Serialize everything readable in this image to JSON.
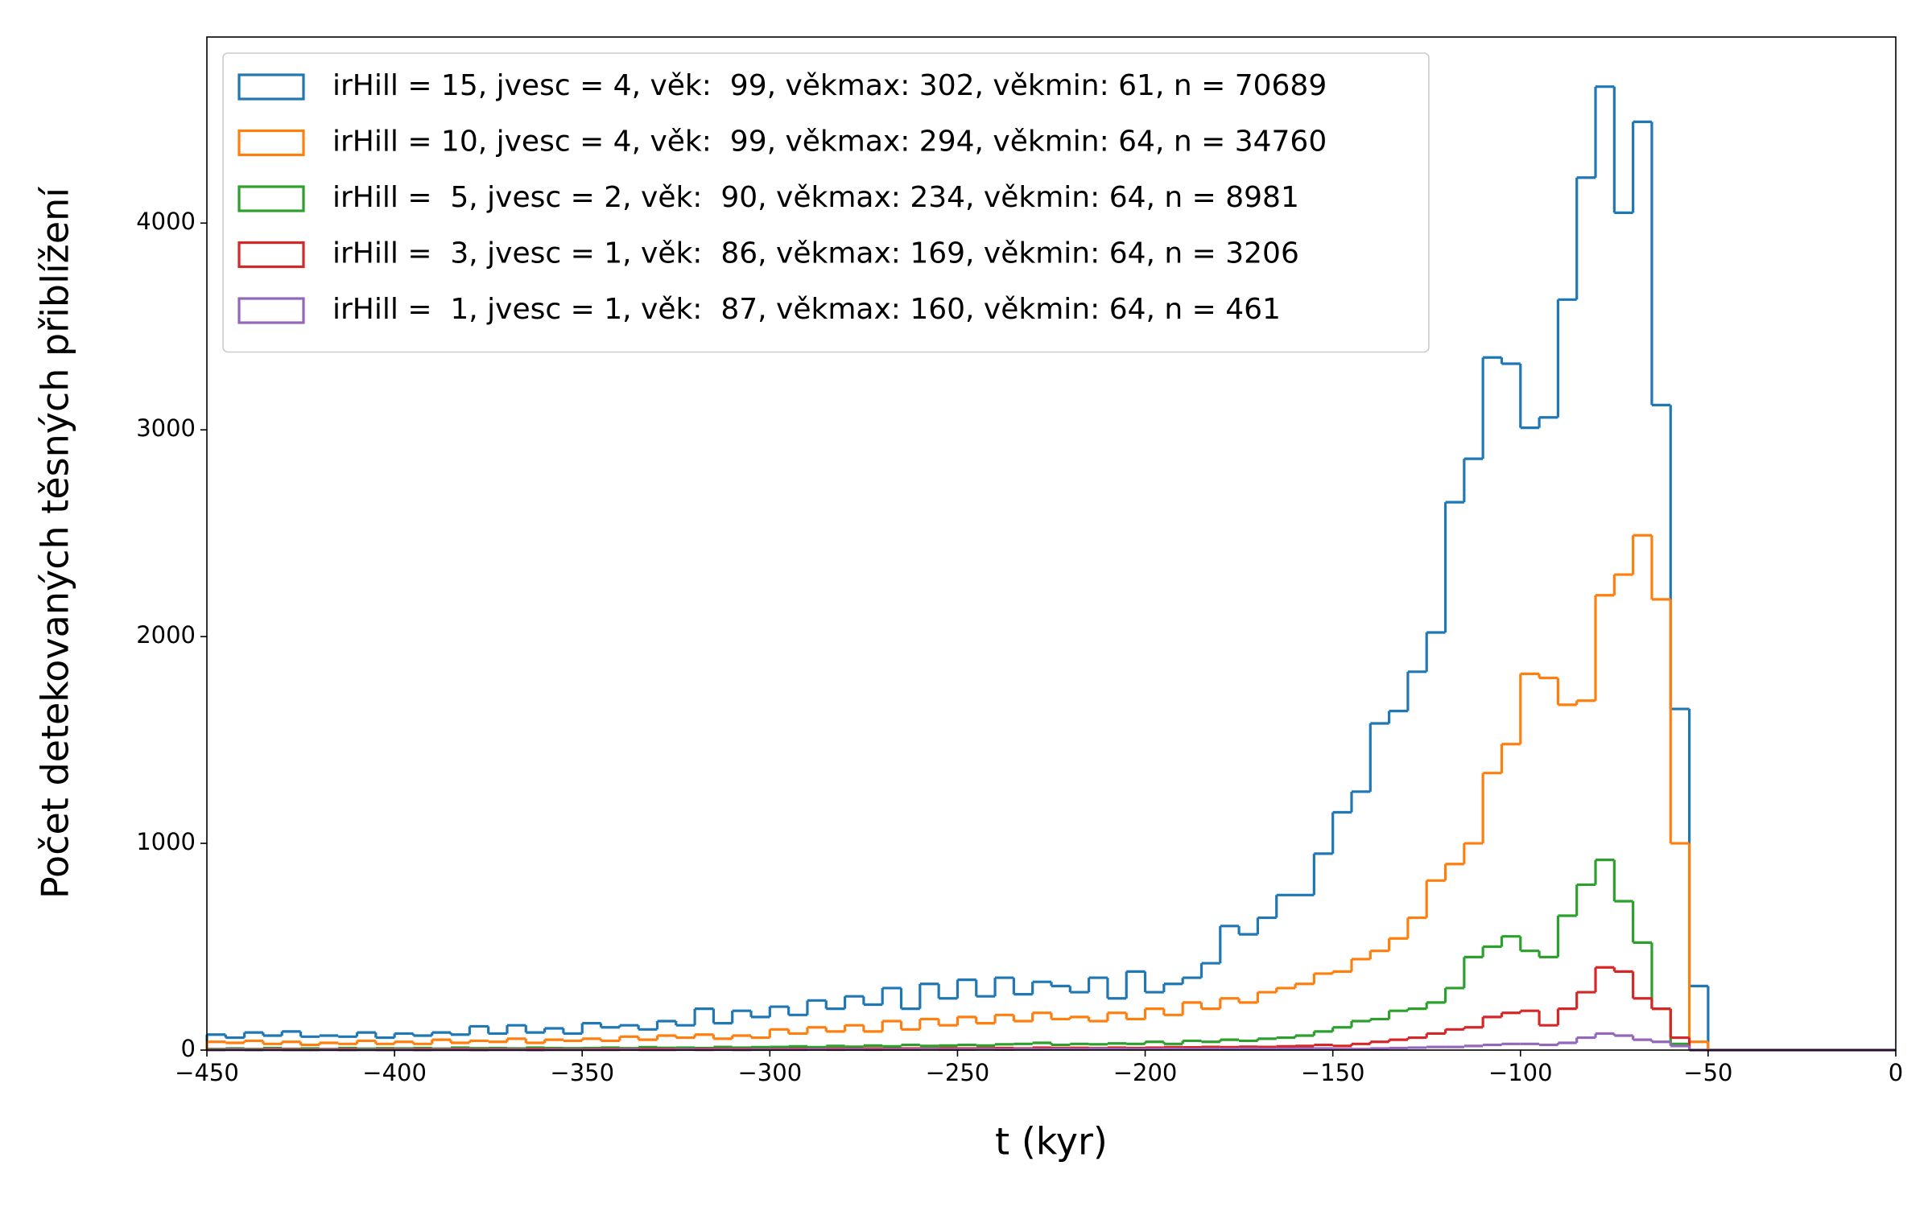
{
  "chart_data": {
    "type": "histogram",
    "xlabel": "t (kyr)",
    "ylabel": "Počet detekovaných těsných přiblížení",
    "bins": [
      -450,
      -445,
      -440,
      -435,
      -430,
      -425,
      -420,
      -415,
      -410,
      -405,
      -400,
      -395,
      -390,
      -385,
      -380,
      -375,
      -370,
      -365,
      -360,
      -355,
      -350,
      -345,
      -340,
      -335,
      -330,
      -325,
      -320,
      -315,
      -310,
      -305,
      -300,
      -295,
      -290,
      -285,
      -280,
      -275,
      -270,
      -265,
      -260,
      -255,
      -250,
      -245,
      -240,
      -235,
      -230,
      -225,
      -220,
      -215,
      -210,
      -205,
      -200,
      -195,
      -190,
      -185,
      -180,
      -175,
      -170,
      -165,
      -160,
      -155,
      -150,
      -145,
      -140,
      -135,
      -130,
      -125,
      -120,
      -115,
      -110,
      -105,
      -100,
      -95,
      -90,
      -85,
      -80,
      -75,
      -70,
      -65,
      -60,
      -55,
      -50,
      -45,
      -40,
      -35,
      -30,
      -25,
      -20,
      -15,
      -10,
      -5,
      0
    ],
    "series": [
      {
        "name": "irHill = 15, jvesc = 4, věk:  99, věkmax: 302, věkmin: 61, n = 70689",
        "color": "#1f77b4",
        "values": [
          75,
          60,
          85,
          70,
          90,
          65,
          70,
          65,
          85,
          60,
          80,
          70,
          85,
          75,
          115,
          80,
          120,
          85,
          105,
          80,
          130,
          110,
          120,
          100,
          140,
          120,
          200,
          130,
          190,
          160,
          210,
          170,
          240,
          200,
          260,
          220,
          300,
          200,
          320,
          250,
          340,
          260,
          350,
          270,
          330,
          310,
          280,
          350,
          250,
          380,
          280,
          320,
          350,
          420,
          600,
          560,
          640,
          750,
          750,
          950,
          1150,
          1250,
          1580,
          1640,
          1830,
          2020,
          2650,
          2860,
          3350,
          3320,
          3010,
          3060,
          3630,
          4220,
          4660,
          4050,
          4490,
          3120,
          1650,
          310,
          0,
          0,
          0,
          0,
          0,
          0,
          0,
          0,
          0,
          0
        ]
      },
      {
        "name": "irHill = 10, jvesc = 4, věk:  99, věkmax: 294, věkmin: 64, n = 34760",
        "color": "#ff7f0e",
        "values": [
          40,
          35,
          45,
          30,
          40,
          25,
          35,
          30,
          45,
          30,
          40,
          30,
          50,
          35,
          45,
          40,
          55,
          35,
          50,
          45,
          55,
          45,
          65,
          50,
          70,
          60,
          75,
          55,
          70,
          60,
          100,
          80,
          110,
          90,
          120,
          90,
          140,
          100,
          150,
          120,
          160,
          130,
          170,
          140,
          180,
          150,
          160,
          140,
          180,
          150,
          200,
          170,
          230,
          200,
          250,
          230,
          280,
          300,
          320,
          370,
          380,
          440,
          480,
          540,
          640,
          820,
          900,
          1000,
          1340,
          1480,
          1820,
          1800,
          1670,
          1690,
          2200,
          2300,
          2490,
          2180,
          1000,
          40,
          0,
          0,
          0,
          0,
          0,
          0,
          0,
          0,
          0,
          0
        ]
      },
      {
        "name": "irHill =  5, jvesc = 2, věk:  90, věkmax: 234, věkmin: 64, n = 8981",
        "color": "#2ca02c",
        "values": [
          5,
          8,
          5,
          10,
          6,
          8,
          5,
          10,
          7,
          9,
          8,
          10,
          7,
          12,
          9,
          10,
          8,
          12,
          10,
          9,
          10,
          12,
          9,
          14,
          11,
          12,
          10,
          15,
          12,
          14,
          15,
          18,
          14,
          20,
          16,
          22,
          18,
          25,
          20,
          22,
          25,
          22,
          28,
          30,
          35,
          25,
          30,
          28,
          32,
          30,
          40,
          30,
          45,
          40,
          50,
          45,
          55,
          60,
          70,
          90,
          110,
          140,
          150,
          190,
          200,
          230,
          300,
          450,
          500,
          550,
          480,
          450,
          650,
          800,
          920,
          720,
          520,
          200,
          30,
          0,
          0,
          0,
          0,
          0,
          0,
          0,
          0,
          0,
          0,
          0
        ]
      },
      {
        "name": "irHill =  3, jvesc = 1, věk:  86, věkmax: 169, věkmin: 64, n = 3206",
        "color": "#d62728",
        "values": [
          2,
          3,
          2,
          4,
          3,
          2,
          3,
          4,
          2,
          3,
          3,
          4,
          3,
          5,
          3,
          4,
          3,
          5,
          4,
          3,
          4,
          5,
          4,
          6,
          5,
          4,
          5,
          6,
          5,
          4,
          5,
          6,
          5,
          7,
          6,
          8,
          6,
          8,
          7,
          9,
          8,
          9,
          10,
          8,
          12,
          10,
          11,
          9,
          12,
          10,
          12,
          14,
          13,
          15,
          14,
          16,
          15,
          18,
          20,
          25,
          20,
          30,
          40,
          50,
          60,
          80,
          100,
          110,
          160,
          180,
          190,
          120,
          200,
          280,
          400,
          380,
          250,
          200,
          60,
          0,
          0,
          0,
          0,
          0,
          0,
          0,
          0,
          0,
          0,
          0
        ]
      },
      {
        "name": "irHill =  1, jvesc = 1, věk:  87, věkmax: 160, věkmin: 64, n = 461",
        "color": "#9467bd",
        "values": [
          0,
          1,
          0,
          1,
          0,
          0,
          1,
          0,
          1,
          0,
          1,
          0,
          1,
          1,
          0,
          1,
          1,
          0,
          1,
          1,
          1,
          1,
          2,
          1,
          1,
          2,
          1,
          2,
          1,
          2,
          2,
          2,
          3,
          2,
          3,
          2,
          3,
          3,
          4,
          3,
          3,
          4,
          3,
          4,
          4,
          5,
          4,
          5,
          5,
          4,
          5,
          6,
          5,
          6,
          6,
          7,
          6,
          7,
          8,
          8,
          5,
          5,
          8,
          10,
          12,
          15,
          15,
          20,
          25,
          30,
          30,
          25,
          35,
          60,
          80,
          70,
          50,
          40,
          20,
          0,
          0,
          0,
          0,
          0,
          0,
          0,
          0,
          0,
          0,
          0
        ]
      }
    ],
    "xlim": [
      -450,
      0
    ],
    "xticks": [
      {
        "value": -450,
        "label": "−450"
      },
      {
        "value": -400,
        "label": "−400"
      },
      {
        "value": -350,
        "label": "−350"
      },
      {
        "value": -300,
        "label": "−300"
      },
      {
        "value": -250,
        "label": "−250"
      },
      {
        "value": -200,
        "label": "−200"
      },
      {
        "value": -150,
        "label": "−150"
      },
      {
        "value": -100,
        "label": "−100"
      },
      {
        "value": -50,
        "label": "−50"
      },
      0
    ],
    "ylim": [
      0,
      4900
    ],
    "yticks": [
      0,
      1000,
      2000,
      3000,
      4000
    ],
    "legend": "upper left"
  }
}
